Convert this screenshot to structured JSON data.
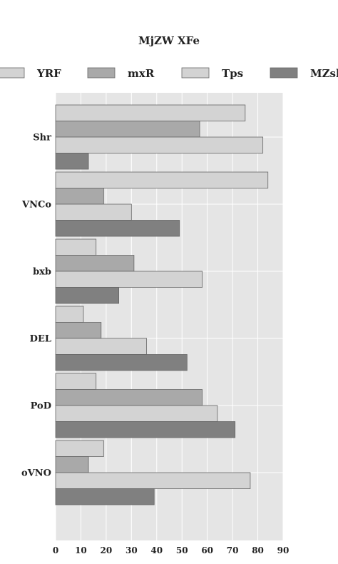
{
  "chart_data": {
    "type": "bar",
    "orientation": "horizontal",
    "title": "MjZW XFe",
    "categories": [
      "Shr",
      "VNCo",
      "bxb",
      "DEL",
      "PoD",
      "oVNO"
    ],
    "series": [
      {
        "name": "YRF",
        "color": "#d3d3d3",
        "values": [
          75,
          84,
          16,
          11,
          16,
          19
        ]
      },
      {
        "name": "mxR",
        "color": "#a9a9a9",
        "values": [
          57,
          19,
          31,
          18,
          58,
          13
        ]
      },
      {
        "name": "Tps",
        "color": "#d3d3d3",
        "values": [
          82,
          30,
          58,
          36,
          64,
          77
        ]
      },
      {
        "name": "MZsk",
        "color": "#808080",
        "values": [
          13,
          49,
          25,
          52,
          71,
          39
        ]
      }
    ],
    "xlim": [
      0,
      90
    ],
    "xticks": [
      "0",
      "10",
      "20",
      "30",
      "40",
      "50",
      "60",
      "70",
      "80",
      "90"
    ],
    "grid": true,
    "legend_position": "top"
  }
}
